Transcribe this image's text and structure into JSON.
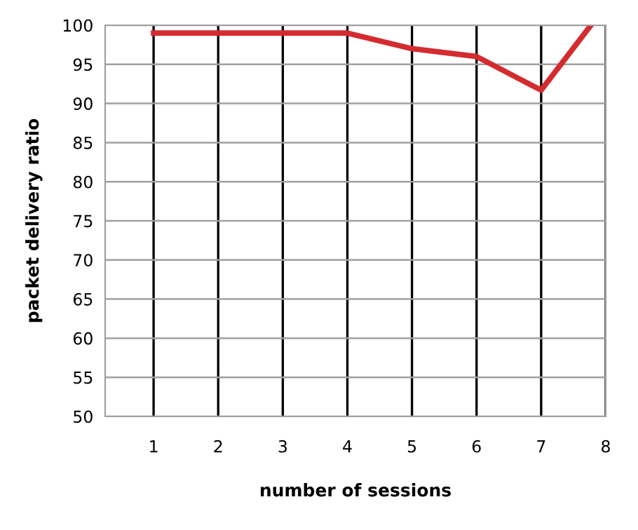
{
  "chart_data": {
    "type": "line",
    "xlabel": "number of sessions",
    "ylabel": "packet delivery ratio",
    "x": [
      1,
      2,
      3,
      4,
      5,
      6,
      7,
      7.77
    ],
    "series": [
      {
        "color": "#d42b2f",
        "values": [
          99,
          99,
          99,
          99,
          97,
          96,
          91.7,
          100
        ]
      }
    ],
    "xlim": [
      0.25,
      8
    ],
    "xticks": [
      1,
      2,
      3,
      4,
      5,
      6,
      7,
      8
    ],
    "ylim": [
      50,
      100
    ],
    "yticks": [
      50,
      55,
      60,
      65,
      70,
      75,
      80,
      85,
      90,
      95,
      100
    ],
    "grid": true,
    "legend": false,
    "marker": "none",
    "line_style": "solid"
  }
}
